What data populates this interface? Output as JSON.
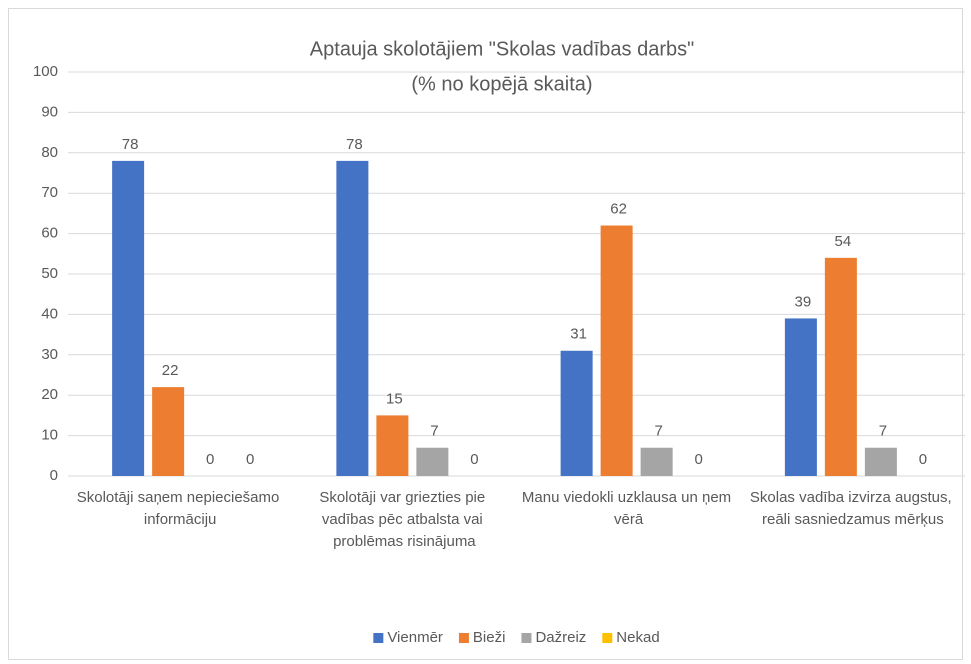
{
  "chart_data": {
    "type": "bar",
    "title": "Aptauja skolotājiem \"Skolas vadības darbs\"",
    "subtitle": "(% no kopējā skaita)",
    "categories": [
      "Skolotāji saņem nepieciešamo informāciju",
      "Skolotāji var griezties pie vadības pēc atbalsta vai problēmas risinājuma",
      "Manu viedokli uzklausa un ņem vērā",
      "Skolas vadība izvirza augstus, reāli sasniedzamus mērķus"
    ],
    "series": [
      {
        "name": "Vienmēr",
        "color": "#4472c4",
        "values": [
          78,
          78,
          31,
          39
        ]
      },
      {
        "name": "Bieži",
        "color": "#ed7d31",
        "values": [
          22,
          15,
          62,
          54
        ]
      },
      {
        "name": "Dažreiz",
        "color": "#a5a5a5",
        "values": [
          0,
          7,
          7,
          7
        ]
      },
      {
        "name": "Nekad",
        "color": "#ffc000",
        "values": [
          0,
          0,
          0,
          0
        ]
      }
    ],
    "ylim": [
      0,
      100
    ],
    "yticks": [
      0,
      10,
      20,
      30,
      40,
      50,
      60,
      70,
      80,
      90,
      100
    ],
    "grid": true,
    "legend": "bottom"
  }
}
